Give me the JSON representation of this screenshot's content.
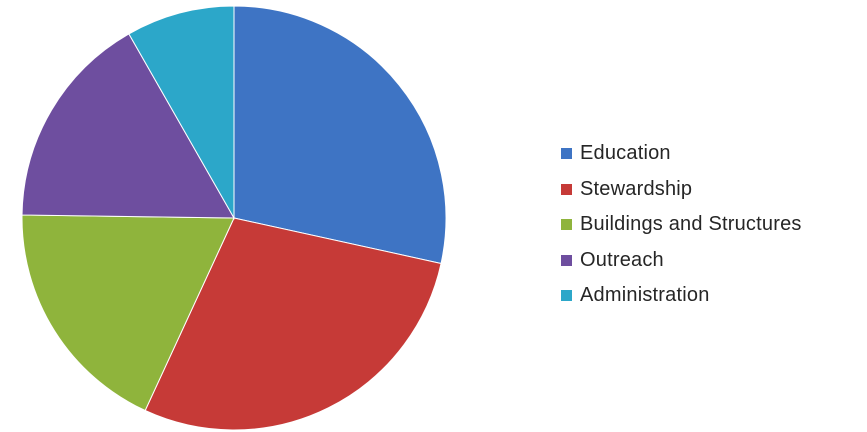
{
  "chart_data": {
    "type": "pie",
    "title": "",
    "start_angle_deg": 0,
    "direction": "clockwise",
    "legend_position": "right",
    "slices": [
      {
        "label": "Education",
        "value": 31,
        "color": "#3E74C4"
      },
      {
        "label": "Stewardship",
        "value": 31,
        "color": "#C63A37"
      },
      {
        "label": "Buildings and Structures",
        "value": 20,
        "color": "#8FB43C"
      },
      {
        "label": "Outreach",
        "value": 18,
        "color": "#6E4E9F"
      },
      {
        "label": "Administration",
        "value": 9,
        "color": "#2CA7C9"
      }
    ]
  }
}
